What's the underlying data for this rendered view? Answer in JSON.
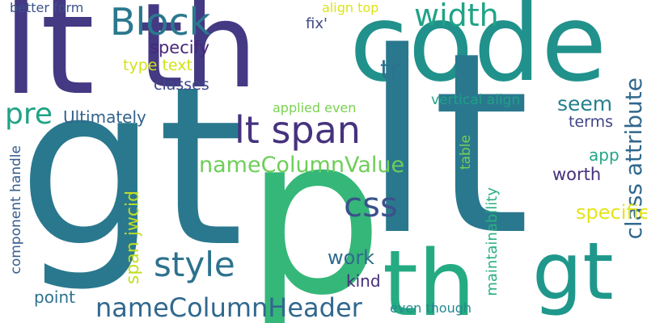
{
  "words": [
    {
      "text": "lt",
      "color": "#443983"
    },
    {
      "text": "th",
      "color": "#443983"
    },
    {
      "text": "code",
      "color": "#21918c"
    },
    {
      "text": "gt",
      "color": "#2a788e"
    },
    {
      "text": "p",
      "color": "#35b779"
    },
    {
      "text": "lt",
      "color": "#2a788e"
    },
    {
      "text": "th",
      "color": "#25ab82"
    },
    {
      "text": "gt",
      "color": "#1f988b"
    },
    {
      "text": "Block",
      "color": "#2a788e"
    },
    {
      "text": "width",
      "color": "#20a386"
    },
    {
      "text": "tr",
      "color": "#2c728e"
    },
    {
      "text": "lt span",
      "color": "#46327e"
    },
    {
      "text": "pre",
      "color": "#20a386"
    },
    {
      "text": "css",
      "color": "#3b528b"
    },
    {
      "text": "style",
      "color": "#2c728e"
    },
    {
      "text": "nameColumnHeader",
      "color": "#31688e"
    },
    {
      "text": "nameColumnValue",
      "color": "#6ece58"
    },
    {
      "text": "class attribute",
      "color": "#31688e"
    },
    {
      "text": "better form",
      "color": "#3b528b"
    },
    {
      "text": "fix'",
      "color": "#3e4a89"
    },
    {
      "text": "align top",
      "color": "#dde318"
    },
    {
      "text": "specify",
      "color": "#482878"
    },
    {
      "text": "type text",
      "color": "#d2e21b"
    },
    {
      "text": "classes",
      "color": "#3e4989"
    },
    {
      "text": "Ultimately",
      "color": "#33638d"
    },
    {
      "text": "applied even",
      "color": "#7ad151"
    },
    {
      "text": "vertical align",
      "color": "#1fa187"
    },
    {
      "text": "seem",
      "color": "#277f8e"
    },
    {
      "text": "terms",
      "color": "#414487"
    },
    {
      "text": "app",
      "color": "#22a785"
    },
    {
      "text": "worth",
      "color": "#472f7d"
    },
    {
      "text": "specified",
      "color": "#75d054"
    },
    {
      "text": "table",
      "color": "#e5e419"
    },
    {
      "text": "span jwcid",
      "color": "#c2df23"
    },
    {
      "text": "component handle",
      "color": "#365d8d"
    },
    {
      "text": "work",
      "color": "#2f6b8e"
    },
    {
      "text": "maintainability",
      "color": "#29af7f"
    },
    {
      "text": "kind",
      "color": "#472d7b"
    },
    {
      "text": "point",
      "color": "#2d708e"
    },
    {
      "text": "even though",
      "color": "#23898e"
    }
  ]
}
